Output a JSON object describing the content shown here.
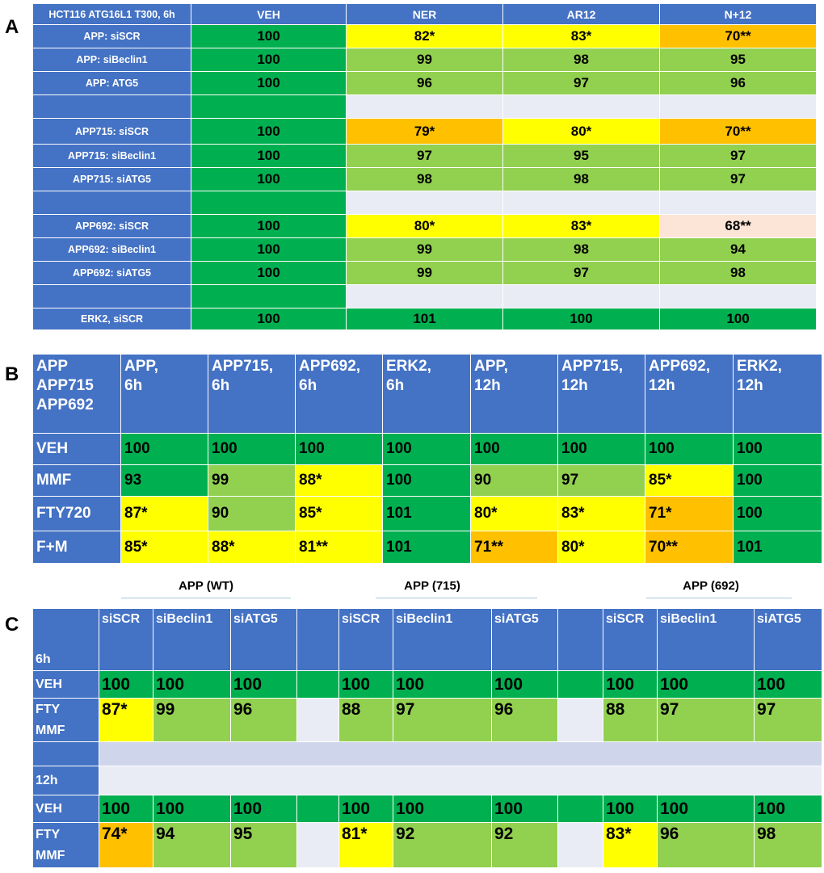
{
  "panels": {
    "a": "A",
    "b": "B",
    "c": "C"
  },
  "tableA": {
    "corner": "HCT116 ATG16L1 T300, 6h",
    "headers": [
      "VEH",
      "NER",
      "AR12",
      "N+12"
    ],
    "rows": [
      {
        "label": "APP: siSCR",
        "cells": [
          "100",
          "82*",
          "83*",
          "70**"
        ]
      },
      {
        "label": "APP: siBeclin1",
        "cells": [
          "100",
          "99",
          "98",
          "95"
        ]
      },
      {
        "label": "APP: ATG5",
        "cells": [
          "100",
          "96",
          "97",
          "96"
        ]
      },
      {
        "label": "",
        "cells": [
          "",
          "",
          "",
          ""
        ]
      },
      {
        "label": "APP715: siSCR",
        "cells": [
          "100",
          "79*",
          "80*",
          "70**"
        ]
      },
      {
        "label": "APP715: siBeclin1",
        "cells": [
          "100",
          "97",
          "95",
          "97"
        ]
      },
      {
        "label": "APP715: siATG5",
        "cells": [
          "100",
          "98",
          "98",
          "97"
        ]
      },
      {
        "label": "",
        "cells": [
          "",
          "",
          "",
          ""
        ]
      },
      {
        "label": "APP692: siSCR",
        "cells": [
          "100",
          "80*",
          "83*",
          "68**"
        ]
      },
      {
        "label": "APP692: siBeclin1",
        "cells": [
          "100",
          "99",
          "98",
          "94"
        ]
      },
      {
        "label": "APP692: siATG5",
        "cells": [
          "100",
          "99",
          "97",
          "98"
        ]
      },
      {
        "label": "",
        "cells": [
          "",
          "",
          "",
          ""
        ]
      },
      {
        "label": "ERK2, siSCR",
        "cells": [
          "100",
          "101",
          "100",
          "100"
        ]
      }
    ]
  },
  "tableB": {
    "corner": [
      "APP",
      "APP715",
      "APP692"
    ],
    "headers": [
      [
        "APP,",
        "6h"
      ],
      [
        "APP715,",
        "6h"
      ],
      [
        "APP692,",
        "6h"
      ],
      [
        "ERK2,",
        "6h"
      ],
      [
        "APP,",
        "12h"
      ],
      [
        "APP715,",
        "12h"
      ],
      [
        "APP692,",
        "12h"
      ],
      [
        "ERK2,",
        "12h"
      ]
    ],
    "rows": [
      {
        "label": "VEH",
        "cells": [
          "100",
          "100",
          "100",
          "100",
          "100",
          "100",
          "100",
          "100"
        ]
      },
      {
        "label": "MMF",
        "cells": [
          "93",
          "99",
          "88*",
          "100",
          "90",
          "97",
          "85*",
          "100"
        ]
      },
      {
        "label": "FTY720",
        "cells": [
          "87*",
          "90",
          "85*",
          "101",
          "80*",
          "83*",
          "71*",
          "100"
        ]
      },
      {
        "label": "F+M",
        "cells": [
          "85*",
          "88*",
          "81**",
          "101",
          "71**",
          "80*",
          "70**",
          "101"
        ]
      }
    ]
  },
  "tableC": {
    "groups": [
      "APP (WT)",
      "APP (715)",
      "APP (692)"
    ],
    "headers": [
      "siSCR",
      "siBeclin1",
      "siATG5"
    ],
    "time6": "6h",
    "time12": "12h",
    "rows6": [
      {
        "label": "VEH",
        "g1": [
          "100",
          "100",
          "100"
        ],
        "g2": [
          "100",
          "100",
          "100"
        ],
        "g3": [
          "100",
          "100",
          "100"
        ]
      },
      {
        "label": [
          "FTY",
          "MMF"
        ],
        "g1": [
          "87*",
          "99",
          "96"
        ],
        "g2": [
          "88",
          "97",
          "96"
        ],
        "g3": [
          "88",
          "97",
          "97"
        ]
      }
    ],
    "rows12": [
      {
        "label": "VEH",
        "g1": [
          "100",
          "100",
          "100"
        ],
        "g2": [
          "100",
          "100",
          "100"
        ],
        "g3": [
          "100",
          "100",
          "100"
        ]
      },
      {
        "label": [
          "FTY",
          "MMF"
        ],
        "g1": [
          "74*",
          "94",
          "95"
        ],
        "g2": [
          "81*",
          "92",
          "92"
        ],
        "g3": [
          "83*",
          "96",
          "98"
        ]
      }
    ]
  },
  "colors": {
    "header_blue": "#4472c4",
    "dark_green": "#00b050",
    "light_green": "#92d050",
    "yellow": "#ffff00",
    "orange": "#ffc000",
    "pink": "#fce4d6",
    "blank_gray": "#e9ebf5"
  }
}
